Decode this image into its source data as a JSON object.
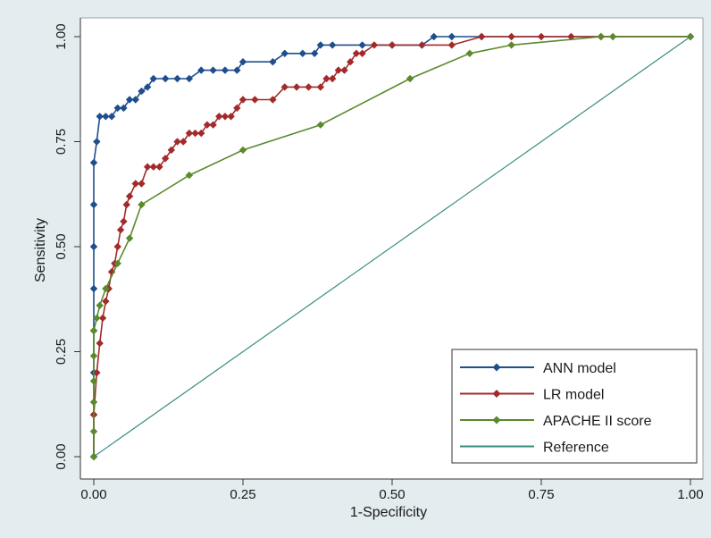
{
  "chart_data": {
    "type": "line",
    "title": "",
    "xlabel": "1-Specificity",
    "ylabel": "Sensitivity",
    "xlim": [
      0,
      1
    ],
    "ylim": [
      0,
      1
    ],
    "xticks": [
      "0.00",
      "0.25",
      "0.50",
      "0.75",
      "1.00"
    ],
    "yticks": [
      "0.00",
      "0.25",
      "0.50",
      "0.75",
      "1.00"
    ],
    "grid": false,
    "legend_position": "bottom-right",
    "series": [
      {
        "name": "ANN model",
        "color": "#1f4e8c",
        "marker": "diamond",
        "x": [
          0,
          0,
          0,
          0,
          0,
          0,
          0,
          0,
          0.005,
          0.01,
          0.02,
          0.03,
          0.04,
          0.05,
          0.06,
          0.07,
          0.08,
          0.09,
          0.1,
          0.12,
          0.14,
          0.16,
          0.18,
          0.2,
          0.22,
          0.24,
          0.25,
          0.3,
          0.32,
          0.35,
          0.37,
          0.38,
          0.4,
          0.45,
          0.5,
          0.55,
          0.57,
          0.6,
          0.65,
          1.0
        ],
        "y": [
          0,
          0.1,
          0.2,
          0.3,
          0.4,
          0.5,
          0.6,
          0.7,
          0.75,
          0.81,
          0.81,
          0.81,
          0.83,
          0.83,
          0.85,
          0.85,
          0.87,
          0.88,
          0.9,
          0.9,
          0.9,
          0.9,
          0.92,
          0.92,
          0.92,
          0.92,
          0.94,
          0.94,
          0.96,
          0.96,
          0.96,
          0.98,
          0.98,
          0.98,
          0.98,
          0.98,
          1.0,
          1.0,
          1.0,
          1.0
        ]
      },
      {
        "name": "LR model",
        "color": "#a32a2a",
        "marker": "diamond",
        "x": [
          0,
          0,
          0.005,
          0.01,
          0.015,
          0.02,
          0.025,
          0.03,
          0.035,
          0.04,
          0.045,
          0.05,
          0.055,
          0.06,
          0.07,
          0.08,
          0.09,
          0.1,
          0.11,
          0.12,
          0.13,
          0.14,
          0.15,
          0.16,
          0.17,
          0.18,
          0.19,
          0.2,
          0.21,
          0.22,
          0.23,
          0.24,
          0.25,
          0.27,
          0.3,
          0.32,
          0.34,
          0.36,
          0.38,
          0.39,
          0.4,
          0.41,
          0.42,
          0.43,
          0.44,
          0.45,
          0.47,
          0.5,
          0.55,
          0.6,
          0.65,
          0.7,
          0.75,
          0.8,
          0.85,
          1.0
        ],
        "y": [
          0,
          0.1,
          0.2,
          0.27,
          0.33,
          0.37,
          0.4,
          0.44,
          0.46,
          0.5,
          0.54,
          0.56,
          0.6,
          0.62,
          0.65,
          0.65,
          0.69,
          0.69,
          0.69,
          0.71,
          0.73,
          0.75,
          0.75,
          0.77,
          0.77,
          0.77,
          0.79,
          0.79,
          0.81,
          0.81,
          0.81,
          0.83,
          0.85,
          0.85,
          0.85,
          0.88,
          0.88,
          0.88,
          0.88,
          0.9,
          0.9,
          0.92,
          0.92,
          0.94,
          0.96,
          0.96,
          0.98,
          0.98,
          0.98,
          0.98,
          1.0,
          1.0,
          1.0,
          1.0,
          1.0,
          1.0
        ]
      },
      {
        "name": "APACHE II score",
        "color": "#5a8a2c",
        "marker": "diamond",
        "x": [
          0,
          0,
          0,
          0,
          0,
          0,
          0.005,
          0.01,
          0.02,
          0.04,
          0.06,
          0.08,
          0.16,
          0.25,
          0.38,
          0.53,
          0.63,
          0.7,
          0.85,
          0.87,
          1.0
        ],
        "y": [
          0,
          0.06,
          0.13,
          0.18,
          0.24,
          0.3,
          0.33,
          0.36,
          0.4,
          0.46,
          0.52,
          0.6,
          0.67,
          0.73,
          0.79,
          0.9,
          0.96,
          0.98,
          1.0,
          1.0,
          1.0
        ]
      },
      {
        "name": "Reference",
        "color": "#3b8c82",
        "marker": "none",
        "x": [
          0,
          1
        ],
        "y": [
          0,
          1
        ]
      }
    ]
  }
}
